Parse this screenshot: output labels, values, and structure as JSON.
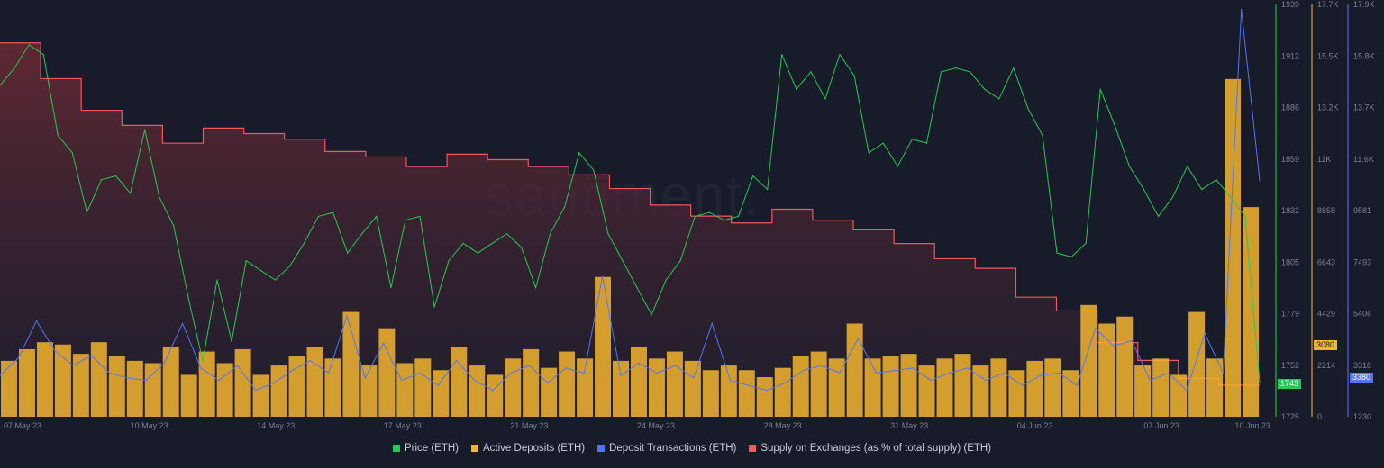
{
  "watermark": "santiment.",
  "colors": {
    "price": "#26c953",
    "active_deposits": "#f3b52f",
    "deposit_transactions": "#5275f5",
    "supply": "#f2575a",
    "background": "#181b29"
  },
  "chart_data": {
    "type": "bar+line",
    "x_ticks": [
      "07 May 23",
      "10 May 23",
      "14 May 23",
      "17 May 23",
      "21 May 23",
      "24 May 23",
      "28 May 23",
      "31 May 23",
      "04 Jun 23",
      "07 Jun 23",
      "10 Jun 23"
    ],
    "axes": {
      "price": {
        "ticks": [
          "1939",
          "1912",
          "1886",
          "1859",
          "1832",
          "1805",
          "1779",
          "1752",
          "1725"
        ],
        "range": [
          1725,
          1939
        ],
        "current": "1743"
      },
      "active_deposits": {
        "ticks": [
          "17.7K",
          "15.5K",
          "13.2K",
          "11K",
          "8858",
          "6643",
          "4429",
          "2214",
          "0"
        ],
        "range": [
          0,
          17700
        ],
        "current": "3080"
      },
      "deposit_transactions": {
        "ticks": [
          "17.9K",
          "15.8K",
          "13.7K",
          "11.6K",
          "9581",
          "7493",
          "5406",
          "3318",
          "1230"
        ],
        "range": [
          1230,
          17900
        ],
        "current": "3380"
      }
    },
    "grid": false,
    "legend_position": "bottom",
    "series": [
      {
        "name": "Price (ETH)",
        "type": "line",
        "axis": "price",
        "values": [
          1897,
          1906,
          1918,
          1913,
          1871,
          1862,
          1831,
          1848,
          1850,
          1841,
          1874,
          1839,
          1824,
          1787,
          1754,
          1796,
          1764,
          1806,
          1801,
          1796,
          1803,
          1815,
          1829,
          1831,
          1810,
          1820,
          1829,
          1792,
          1827,
          1829,
          1782,
          1806,
          1815,
          1810,
          1815,
          1820,
          1813,
          1792,
          1820,
          1834,
          1862,
          1853,
          1820,
          1806,
          1792,
          1778,
          1796,
          1806,
          1829,
          1831,
          1827,
          1829,
          1850,
          1843,
          1913,
          1895,
          1904,
          1890,
          1913,
          1902,
          1862,
          1867,
          1855,
          1869,
          1867,
          1904,
          1906,
          1904,
          1895,
          1890,
          1906,
          1885,
          1871,
          1810,
          1808,
          1815,
          1895,
          1876,
          1855,
          1843,
          1829,
          1839,
          1855,
          1843,
          1848,
          1839,
          1829,
          1743
        ]
      },
      {
        "name": "Active Deposits (ETH)",
        "type": "bar",
        "axis": "active_deposits",
        "values": [
          2400,
          2900,
          3200,
          3100,
          2700,
          3200,
          2600,
          2400,
          2300,
          3000,
          1800,
          2800,
          2300,
          2900,
          1800,
          2200,
          2600,
          3000,
          2500,
          4500,
          2200,
          3800,
          2300,
          2500,
          2000,
          3000,
          2200,
          1800,
          2500,
          2900,
          2100,
          2800,
          2500,
          6000,
          2400,
          3000,
          2500,
          2800,
          2400,
          2000,
          2200,
          2000,
          1700,
          2100,
          2600,
          2800,
          2500,
          4000,
          2500,
          2600,
          2700,
          2200,
          2500,
          2700,
          2200,
          2500,
          2000,
          2400,
          2500,
          2000,
          4800,
          4000,
          4300,
          2200,
          2500,
          1800,
          4500,
          2500,
          14500,
          9000
        ]
      },
      {
        "name": "Deposit Transactions (ETH)",
        "type": "line",
        "axis": "deposit_transactions",
        "values": [
          2900,
          3600,
          5100,
          3900,
          3300,
          3700,
          3000,
          2800,
          2700,
          3400,
          5000,
          3200,
          2700,
          3300,
          2300,
          2600,
          3100,
          3500,
          3000,
          5300,
          2800,
          4200,
          2700,
          3000,
          2500,
          3500,
          2700,
          2300,
          3000,
          3300,
          2600,
          3200,
          3000,
          6900,
          2900,
          3400,
          3000,
          3300,
          2800,
          5000,
          2700,
          2500,
          2300,
          2600,
          3100,
          3300,
          3000,
          4400,
          3000,
          3100,
          3200,
          2700,
          3000,
          3200,
          2700,
          3000,
          2500,
          2900,
          3000,
          2500,
          4800,
          4100,
          4300,
          2700,
          3000,
          2300,
          4600,
          3000,
          17700,
          10800
        ]
      },
      {
        "name": "Supply on Exchanges (as % of total supply) (ETH)",
        "type": "step-area",
        "values": [
          10.72,
          10.46,
          10.23,
          10.12,
          9.99,
          10.1,
          10.06,
          10.02,
          9.93,
          9.89,
          9.82,
          9.91,
          9.87,
          9.82,
          9.76,
          9.66,
          9.54,
          9.46,
          9.41,
          9.51,
          9.43,
          9.36,
          9.26,
          9.15,
          9.08,
          8.87,
          8.77,
          8.54,
          8.41,
          8.28,
          8.23
        ]
      }
    ]
  }
}
